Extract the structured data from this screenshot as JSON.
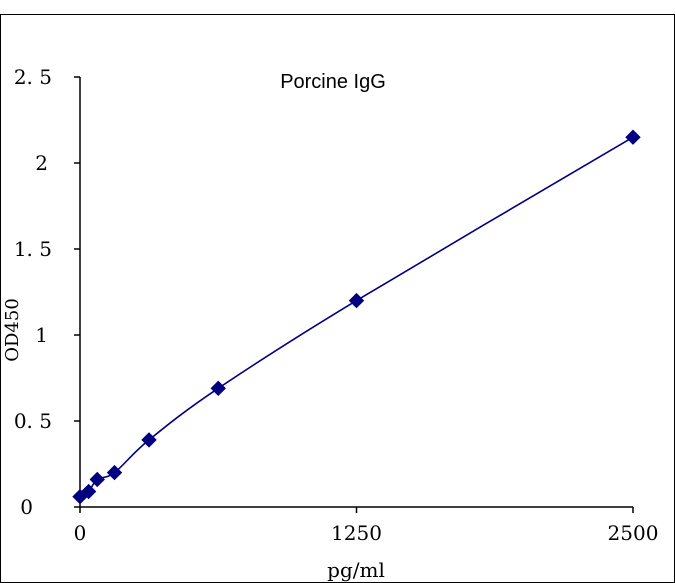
{
  "chart_data": {
    "type": "scatter",
    "title": "Porcine IgG",
    "xlabel": "pg/ml",
    "ylabel": "OD450",
    "xlim": [
      0,
      2500
    ],
    "ylim": [
      0,
      2.5
    ],
    "x_ticks": [
      0,
      1250,
      2500
    ],
    "x_tick_labels": [
      "0",
      "1250",
      "2500"
    ],
    "y_ticks": [
      0,
      0.5,
      1,
      1.5,
      2,
      2.5
    ],
    "y_tick_labels": [
      "0",
      "0. 5",
      "1",
      "1. 5",
      "2",
      "2. 5"
    ],
    "grid": false,
    "legend": "none",
    "series": [
      {
        "x": [
          0,
          39,
          78,
          156,
          312,
          625,
          1250,
          2500
        ],
        "y": [
          0.06,
          0.09,
          0.16,
          0.2,
          0.39,
          0.69,
          1.2,
          2.15
        ],
        "marker": "diamond",
        "trendline": "smooth"
      }
    ],
    "colors": {
      "series": "#000080",
      "axes": "#000000",
      "frame": "#000000"
    }
  }
}
